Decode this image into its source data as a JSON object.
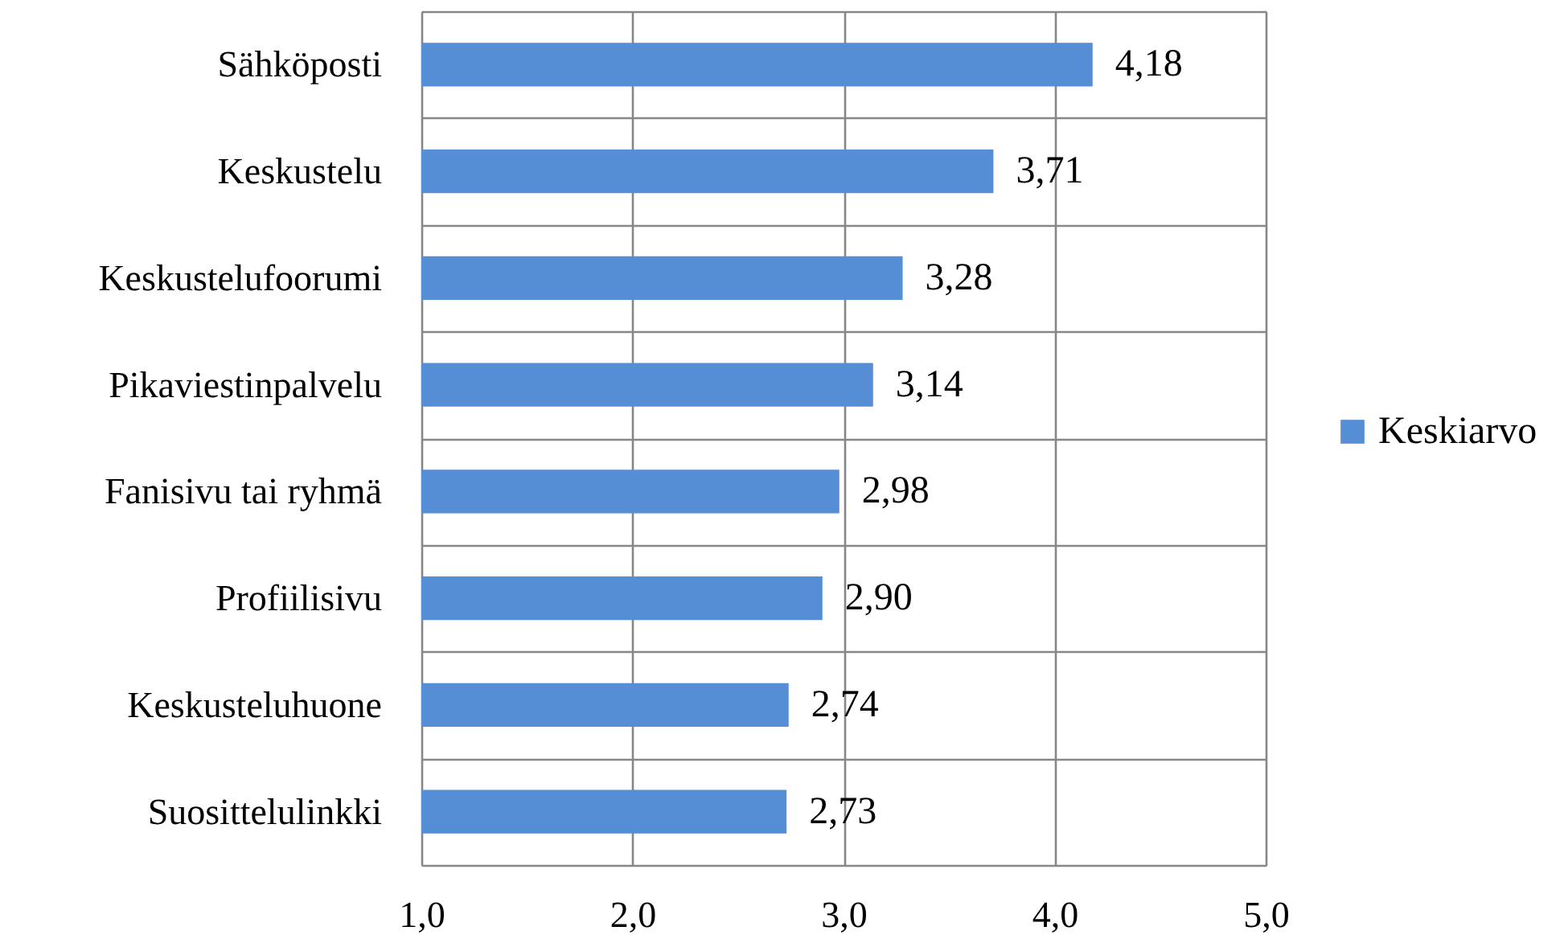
{
  "chart_data": {
    "type": "bar",
    "orientation": "horizontal",
    "categories": [
      "Sähköposti",
      "Keskustelu",
      "Keskustelufoorumi",
      "Pikaviestinpalvelu",
      "Fanisivu tai ryhmä",
      "Profiilisivu",
      "Keskusteluhuone",
      "Suosittelulinkki"
    ],
    "series": [
      {
        "name": "Keskiarvo",
        "color": "#558ed5",
        "values": [
          4.18,
          3.71,
          3.28,
          3.14,
          2.98,
          2.9,
          2.74,
          2.73
        ],
        "value_labels": [
          "4,18",
          "3,71",
          "3,28",
          "3,14",
          "2,98",
          "2,90",
          "2,74",
          "2,73"
        ]
      }
    ],
    "xlim": [
      1,
      5
    ],
    "xticks": [
      {
        "value": 1,
        "label": "1,0"
      },
      {
        "value": 2,
        "label": "2,0"
      },
      {
        "value": 3,
        "label": "3,0"
      },
      {
        "value": 4,
        "label": "4,0"
      },
      {
        "value": 5,
        "label": "5,0"
      }
    ],
    "grid": true,
    "legend": "right"
  }
}
